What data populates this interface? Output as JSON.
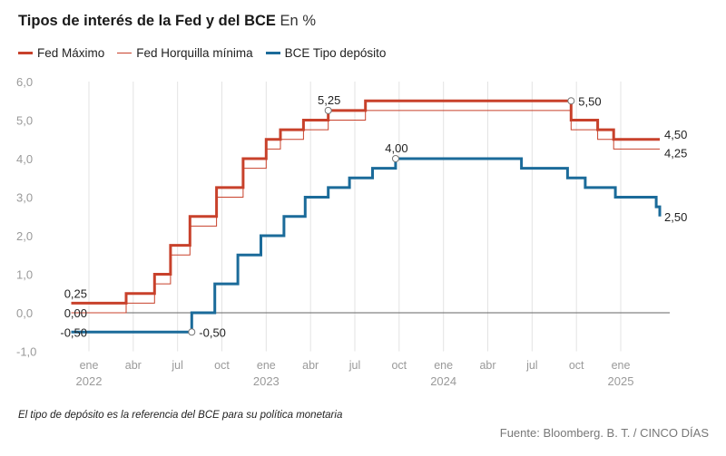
{
  "chart_data": {
    "type": "line",
    "title": "Tipos de interés de la Fed y del BCE",
    "subtitle": "En %",
    "source": "Fuente: Bloomberg. B. T. / CINCO DÍAS",
    "footnote": "El tipo de depósito es la referencia del BCE para su política monetaria",
    "ylim": [
      -1.0,
      6.0
    ],
    "yticks": [
      "6,0",
      "5,0",
      "4,0",
      "3,0",
      "2,0",
      "1,0",
      "0,0",
      "-1,0"
    ],
    "ytick_values": [
      6,
      5,
      4,
      3,
      2,
      1,
      0,
      -1
    ],
    "xlim": [
      2022.0,
      2025.5
    ],
    "xticks": [
      {
        "label": "ene",
        "year": "2022",
        "value": 2022.0
      },
      {
        "label": "abr",
        "value": 2022.25
      },
      {
        "label": "jul",
        "value": 2022.5
      },
      {
        "label": "oct",
        "value": 2022.75
      },
      {
        "label": "ene",
        "year": "2023",
        "value": 2023.0
      },
      {
        "label": "abr",
        "value": 2023.25
      },
      {
        "label": "jul",
        "value": 2023.5
      },
      {
        "label": "oct",
        "value": 2023.75
      },
      {
        "label": "ene",
        "year": "2024",
        "value": 2024.0
      },
      {
        "label": "abr",
        "value": 2024.25
      },
      {
        "label": "jul",
        "value": 2024.5
      },
      {
        "label": "oct",
        "value": 2024.75
      },
      {
        "label": "ene",
        "year": "2025",
        "value": 2025.0
      }
    ],
    "series": [
      {
        "name": "Fed Máximo",
        "color": "#c8412b",
        "x": [
          2021.9,
          2022.21,
          2022.37,
          2022.46,
          2022.57,
          2022.72,
          2022.87,
          2023.0,
          2023.08,
          2023.21,
          2023.35,
          2023.56,
          2024.72,
          2024.87,
          2024.96,
          2025.22
        ],
        "y": [
          0.25,
          0.5,
          1.0,
          1.75,
          2.5,
          3.25,
          4.0,
          4.5,
          4.75,
          5.0,
          5.25,
          5.5,
          5.0,
          4.75,
          4.5,
          4.5
        ]
      },
      {
        "name": "Fed Horquilla mínima",
        "color": "#c8412b",
        "x": [
          2021.9,
          2022.21,
          2022.37,
          2022.46,
          2022.57,
          2022.72,
          2022.87,
          2023.0,
          2023.08,
          2023.21,
          2023.35,
          2023.56,
          2024.72,
          2024.87,
          2024.96,
          2025.22
        ],
        "y": [
          0.0,
          0.25,
          0.75,
          1.5,
          2.25,
          3.0,
          3.75,
          4.25,
          4.5,
          4.75,
          5.0,
          5.25,
          4.75,
          4.5,
          4.25,
          4.25
        ]
      },
      {
        "name": "BCE Tipo depósito",
        "color": "#1b6b9a",
        "x": [
          2021.9,
          2022.58,
          2022.71,
          2022.84,
          2022.97,
          2023.1,
          2023.22,
          2023.35,
          2023.47,
          2023.6,
          2023.73,
          2024.44,
          2024.7,
          2024.8,
          2024.97,
          2025.2,
          2025.22
        ],
        "y": [
          -0.5,
          0.0,
          0.75,
          1.5,
          2.0,
          2.5,
          3.0,
          3.25,
          3.5,
          3.75,
          4.0,
          3.75,
          3.5,
          3.25,
          3.0,
          2.75,
          2.5
        ]
      }
    ],
    "annotations": [
      {
        "label": "0,25",
        "x": 2021.9,
        "y": 0.25,
        "anchor": "start-left",
        "color": "#222"
      },
      {
        "label": "0,00",
        "x": 2021.9,
        "y": 0.0,
        "anchor": "start-left",
        "color": "#222"
      },
      {
        "label": "-0,50",
        "x": 2021.9,
        "y": -0.5,
        "anchor": "start-left",
        "color": "#222"
      },
      {
        "label": "-0,50",
        "x": 2022.58,
        "y": -0.5,
        "anchor": "right",
        "marker": true,
        "color": "#222"
      },
      {
        "label": "5,25",
        "x": 2023.35,
        "y": 5.25,
        "anchor": "above",
        "marker": true,
        "color": "#222"
      },
      {
        "label": "4,00",
        "x": 2023.73,
        "y": 4.0,
        "anchor": "above",
        "marker": true,
        "color": "#222"
      },
      {
        "label": "5,50",
        "x": 2024.72,
        "y": 5.5,
        "anchor": "right",
        "marker": true,
        "color": "#222"
      },
      {
        "label": "4,50",
        "x": 2025.22,
        "y": 4.5,
        "anchor": "end",
        "color": "#222"
      },
      {
        "label": "4,25",
        "x": 2025.22,
        "y": 4.25,
        "anchor": "end",
        "color": "#222"
      },
      {
        "label": "2,50",
        "x": 2025.22,
        "y": 2.5,
        "anchor": "end",
        "color": "#222"
      }
    ],
    "grid": true,
    "grid_direction": "vertical",
    "legend_position": "top-left"
  }
}
